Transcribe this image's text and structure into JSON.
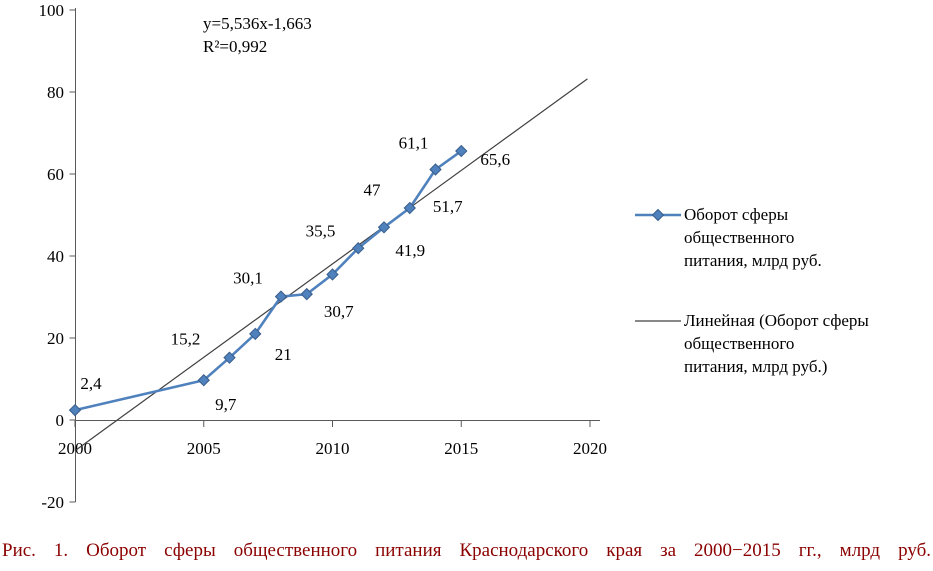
{
  "chart_data": {
    "type": "line",
    "x": [
      2000,
      2005,
      2006,
      2007,
      2008,
      2009,
      2010,
      2011,
      2012,
      2013,
      2014,
      2015
    ],
    "series": [
      {
        "name": "Оборот сферы общественного питания, млрд руб.",
        "values": [
          2.4,
          9.7,
          15.2,
          21,
          30.1,
          30.7,
          35.5,
          41.9,
          47,
          51.7,
          61.1,
          65.6
        ],
        "point_labels": [
          "2,4",
          "9,7",
          "15,2",
          "21",
          "30,1",
          "30,7",
          "35,5",
          "41,9",
          "47",
          "51,7",
          "61,1",
          "65,6"
        ],
        "label_sides": [
          "above",
          "below",
          "above",
          "below",
          "above",
          "below",
          "above",
          "below",
          "above",
          "below",
          "above",
          "below"
        ],
        "color": "#4f81bd",
        "marker": "diamond"
      }
    ],
    "trendline": {
      "name": "Линейная (Оборот сферы общественного питания, млрд руб.)",
      "equation": "y=5,536x-1,663",
      "r2": "R²=0,992",
      "color": "#404040",
      "start": {
        "x": 2000,
        "y": -7.5
      },
      "end": {
        "x": 2019.9,
        "y": 83.2
      }
    },
    "title": "",
    "xlabel": "",
    "ylabel": "",
    "xlim": [
      2000,
      2020
    ],
    "ylim": [
      -20,
      100
    ],
    "x_ticks": [
      2000,
      2005,
      2010,
      2015,
      2020
    ],
    "y_ticks": [
      100,
      80,
      60,
      40,
      20,
      0,
      -20
    ],
    "grid": false,
    "legend_position": "right"
  },
  "legend": {
    "items": [
      {
        "key": "diamond-line",
        "color": "#4f81bd",
        "lines": [
          "Оборот сферы",
          "общественного",
          "питания, млрд руб."
        ]
      },
      {
        "key": "line",
        "color": "#404040",
        "lines": [
          "Линейная (Оборот сферы",
          "общественного",
          "питания, млрд руб.)"
        ]
      }
    ]
  },
  "caption": "Рис. 1. Оборот сферы общественного питания Краснодарского края за 2000−2015 гг., млрд руб."
}
